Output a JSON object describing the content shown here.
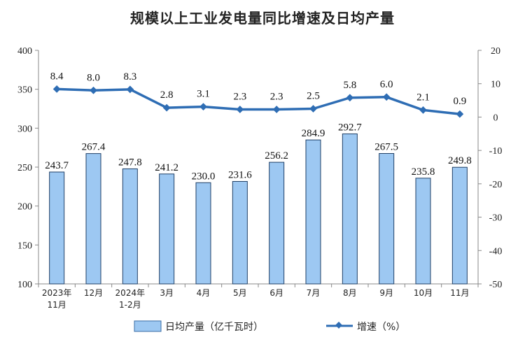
{
  "chart_data": {
    "title": "规模以上工业发电量同比增速及日均产量",
    "type": "bar+line",
    "categories": [
      [
        "2023年",
        "11月"
      ],
      [
        "12月"
      ],
      [
        "2024年",
        "1-2月"
      ],
      [
        "3月"
      ],
      [
        "4月"
      ],
      [
        "5月"
      ],
      [
        "6月"
      ],
      [
        "7月"
      ],
      [
        "8月"
      ],
      [
        "9月"
      ],
      [
        "10月"
      ],
      [
        "11月"
      ]
    ],
    "bar_series": {
      "name": "日均产量（亿千瓦时）",
      "values": [
        243.7,
        267.4,
        247.8,
        241.2,
        230.0,
        231.6,
        256.2,
        284.9,
        292.7,
        267.5,
        235.8,
        249.8
      ],
      "labels": [
        "243.7",
        "267.4",
        "247.8",
        "241.2",
        "230.0",
        "231.6",
        "256.2",
        "284.9",
        "292.7",
        "267.5",
        "235.8",
        "249.8"
      ],
      "color": "#9dc8f2",
      "axis": "left"
    },
    "line_series": {
      "name": "增速（%）",
      "values": [
        8.4,
        8.0,
        8.3,
        2.8,
        3.1,
        2.3,
        2.3,
        2.5,
        5.8,
        6.0,
        2.1,
        0.9
      ],
      "labels": [
        "8.4",
        "8.0",
        "8.3",
        "2.8",
        "3.1",
        "2.3",
        "2.3",
        "2.5",
        "5.8",
        "6.0",
        "2.1",
        "0.9"
      ],
      "color": "#2e6db4",
      "axis": "right"
    },
    "y_left": {
      "min": 100,
      "max": 400,
      "ticks": [
        100,
        150,
        200,
        250,
        300,
        350,
        400
      ]
    },
    "y_right": {
      "min": -50,
      "max": 20,
      "ticks": [
        -50,
        -40,
        -30,
        -20,
        -10,
        0,
        10,
        20
      ]
    },
    "grid": false,
    "legend_position": "bottom"
  }
}
